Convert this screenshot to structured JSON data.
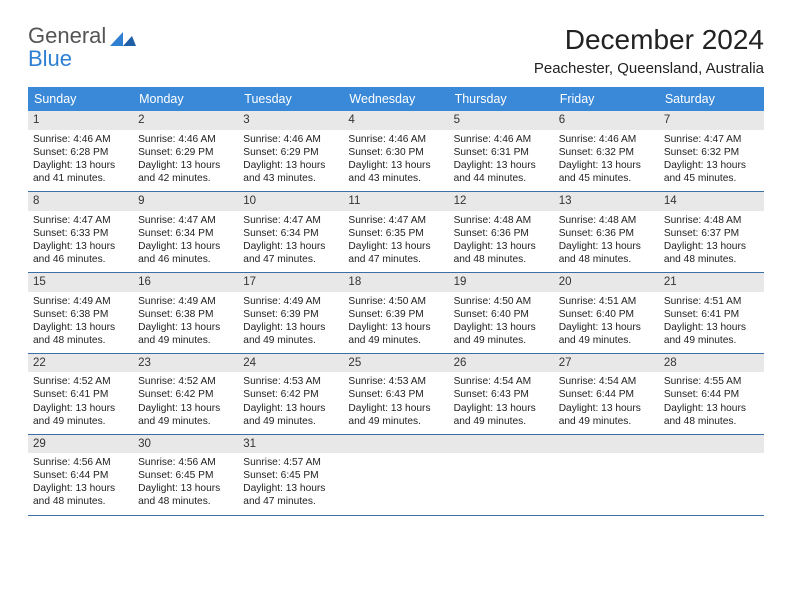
{
  "logo": {
    "line1": "General",
    "line2": "Blue"
  },
  "title": "December 2024",
  "location": "Peachester, Queensland, Australia",
  "colors": {
    "header_bg": "#3a89d8",
    "header_text": "#ffffff",
    "rule": "#3a6fa8",
    "daynum_bg": "#e8e8e8",
    "body_text": "#222222",
    "logo_blue": "#2f7fd3",
    "logo_gray": "#555555",
    "page_bg": "#ffffff"
  },
  "day_names": [
    "Sunday",
    "Monday",
    "Tuesday",
    "Wednesday",
    "Thursday",
    "Friday",
    "Saturday"
  ],
  "days": [
    {
      "n": "1",
      "sr": "4:46 AM",
      "ss": "6:28 PM",
      "dl": "13 hours and 41 minutes."
    },
    {
      "n": "2",
      "sr": "4:46 AM",
      "ss": "6:29 PM",
      "dl": "13 hours and 42 minutes."
    },
    {
      "n": "3",
      "sr": "4:46 AM",
      "ss": "6:29 PM",
      "dl": "13 hours and 43 minutes."
    },
    {
      "n": "4",
      "sr": "4:46 AM",
      "ss": "6:30 PM",
      "dl": "13 hours and 43 minutes."
    },
    {
      "n": "5",
      "sr": "4:46 AM",
      "ss": "6:31 PM",
      "dl": "13 hours and 44 minutes."
    },
    {
      "n": "6",
      "sr": "4:46 AM",
      "ss": "6:32 PM",
      "dl": "13 hours and 45 minutes."
    },
    {
      "n": "7",
      "sr": "4:47 AM",
      "ss": "6:32 PM",
      "dl": "13 hours and 45 minutes."
    },
    {
      "n": "8",
      "sr": "4:47 AM",
      "ss": "6:33 PM",
      "dl": "13 hours and 46 minutes."
    },
    {
      "n": "9",
      "sr": "4:47 AM",
      "ss": "6:34 PM",
      "dl": "13 hours and 46 minutes."
    },
    {
      "n": "10",
      "sr": "4:47 AM",
      "ss": "6:34 PM",
      "dl": "13 hours and 47 minutes."
    },
    {
      "n": "11",
      "sr": "4:47 AM",
      "ss": "6:35 PM",
      "dl": "13 hours and 47 minutes."
    },
    {
      "n": "12",
      "sr": "4:48 AM",
      "ss": "6:36 PM",
      "dl": "13 hours and 48 minutes."
    },
    {
      "n": "13",
      "sr": "4:48 AM",
      "ss": "6:36 PM",
      "dl": "13 hours and 48 minutes."
    },
    {
      "n": "14",
      "sr": "4:48 AM",
      "ss": "6:37 PM",
      "dl": "13 hours and 48 minutes."
    },
    {
      "n": "15",
      "sr": "4:49 AM",
      "ss": "6:38 PM",
      "dl": "13 hours and 48 minutes."
    },
    {
      "n": "16",
      "sr": "4:49 AM",
      "ss": "6:38 PM",
      "dl": "13 hours and 49 minutes."
    },
    {
      "n": "17",
      "sr": "4:49 AM",
      "ss": "6:39 PM",
      "dl": "13 hours and 49 minutes."
    },
    {
      "n": "18",
      "sr": "4:50 AM",
      "ss": "6:39 PM",
      "dl": "13 hours and 49 minutes."
    },
    {
      "n": "19",
      "sr": "4:50 AM",
      "ss": "6:40 PM",
      "dl": "13 hours and 49 minutes."
    },
    {
      "n": "20",
      "sr": "4:51 AM",
      "ss": "6:40 PM",
      "dl": "13 hours and 49 minutes."
    },
    {
      "n": "21",
      "sr": "4:51 AM",
      "ss": "6:41 PM",
      "dl": "13 hours and 49 minutes."
    },
    {
      "n": "22",
      "sr": "4:52 AM",
      "ss": "6:41 PM",
      "dl": "13 hours and 49 minutes."
    },
    {
      "n": "23",
      "sr": "4:52 AM",
      "ss": "6:42 PM",
      "dl": "13 hours and 49 minutes."
    },
    {
      "n": "24",
      "sr": "4:53 AM",
      "ss": "6:42 PM",
      "dl": "13 hours and 49 minutes."
    },
    {
      "n": "25",
      "sr": "4:53 AM",
      "ss": "6:43 PM",
      "dl": "13 hours and 49 minutes."
    },
    {
      "n": "26",
      "sr": "4:54 AM",
      "ss": "6:43 PM",
      "dl": "13 hours and 49 minutes."
    },
    {
      "n": "27",
      "sr": "4:54 AM",
      "ss": "6:44 PM",
      "dl": "13 hours and 49 minutes."
    },
    {
      "n": "28",
      "sr": "4:55 AM",
      "ss": "6:44 PM",
      "dl": "13 hours and 48 minutes."
    },
    {
      "n": "29",
      "sr": "4:56 AM",
      "ss": "6:44 PM",
      "dl": "13 hours and 48 minutes."
    },
    {
      "n": "30",
      "sr": "4:56 AM",
      "ss": "6:45 PM",
      "dl": "13 hours and 48 minutes."
    },
    {
      "n": "31",
      "sr": "4:57 AM",
      "ss": "6:45 PM",
      "dl": "13 hours and 47 minutes."
    }
  ],
  "labels": {
    "sunrise": "Sunrise:",
    "sunset": "Sunset:",
    "daylight": "Daylight:"
  },
  "layout": {
    "first_day_offset": 0,
    "weeks": 5,
    "cols": 7
  }
}
